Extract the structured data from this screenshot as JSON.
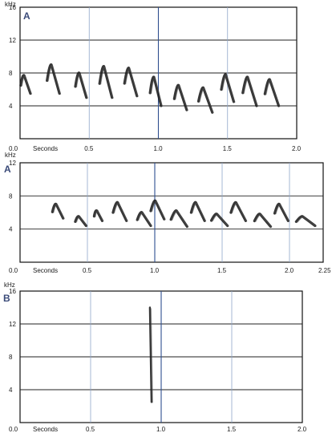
{
  "chart_data": [
    {
      "type": "spectrogram",
      "panel_label": "A",
      "ylabel": "kHz",
      "xlabel": "Seconds",
      "ylim": [
        0,
        16
      ],
      "xlim": [
        0,
        2.0
      ],
      "y_ticks": [
        "4",
        "8",
        "12",
        "16"
      ],
      "x_ticks": [
        "0.0",
        "0.5",
        "1.0",
        "1.5",
        "2.0"
      ],
      "notes": [
        {
          "t": 0.04,
          "f_low": 5.5,
          "f_high": 7.7,
          "w": 0.07
        },
        {
          "t": 0.24,
          "f_low": 5.5,
          "f_high": 9.0,
          "w": 0.09
        },
        {
          "t": 0.44,
          "f_low": 5.0,
          "f_high": 8.0,
          "w": 0.08
        },
        {
          "t": 0.62,
          "f_low": 5.0,
          "f_high": 8.8,
          "w": 0.09
        },
        {
          "t": 0.8,
          "f_low": 5.2,
          "f_high": 8.6,
          "w": 0.09
        },
        {
          "t": 0.98,
          "f_low": 4.0,
          "f_high": 7.5,
          "w": 0.08
        },
        {
          "t": 1.16,
          "f_low": 3.5,
          "f_high": 6.5,
          "w": 0.09
        },
        {
          "t": 1.34,
          "f_low": 3.2,
          "f_high": 6.2,
          "w": 0.1
        },
        {
          "t": 1.5,
          "f_low": 4.5,
          "f_high": 7.8,
          "w": 0.09
        },
        {
          "t": 1.66,
          "f_low": 4.0,
          "f_high": 7.5,
          "w": 0.1
        },
        {
          "t": 1.82,
          "f_low": 4.0,
          "f_high": 7.2,
          "w": 0.1
        }
      ]
    },
    {
      "type": "spectrogram",
      "panel_label": "A",
      "ylabel": "kHz",
      "xlabel": "Seconds",
      "ylim": [
        0,
        12
      ],
      "xlim": [
        0,
        2.25
      ],
      "y_ticks": [
        "4",
        "8",
        "12"
      ],
      "x_ticks": [
        "0.0",
        "0.5",
        "1.0",
        "1.5",
        "2.0",
        "2.25"
      ],
      "notes": [
        {
          "t": 0.28,
          "f_low": 5.3,
          "f_high": 7.0,
          "w": 0.08
        },
        {
          "t": 0.45,
          "f_low": 4.4,
          "f_high": 5.5,
          "w": 0.08
        },
        {
          "t": 0.58,
          "f_low": 5.0,
          "f_high": 6.2,
          "w": 0.06
        },
        {
          "t": 0.74,
          "f_low": 5.0,
          "f_high": 7.2,
          "w": 0.1
        },
        {
          "t": 0.92,
          "f_low": 4.4,
          "f_high": 6.0,
          "w": 0.1
        },
        {
          "t": 1.02,
          "f_low": 5.2,
          "f_high": 7.4,
          "w": 0.1
        },
        {
          "t": 1.18,
          "f_low": 4.3,
          "f_high": 6.2,
          "w": 0.12
        },
        {
          "t": 1.32,
          "f_low": 5.0,
          "f_high": 7.2,
          "w": 0.1
        },
        {
          "t": 1.48,
          "f_low": 4.4,
          "f_high": 5.8,
          "w": 0.12
        },
        {
          "t": 1.62,
          "f_low": 5.0,
          "f_high": 7.2,
          "w": 0.11
        },
        {
          "t": 1.8,
          "f_low": 4.3,
          "f_high": 5.8,
          "w": 0.12
        },
        {
          "t": 1.94,
          "f_low": 5.0,
          "f_high": 7.0,
          "w": 0.1
        },
        {
          "t": 2.12,
          "f_low": 4.4,
          "f_high": 5.5,
          "w": 0.14
        }
      ]
    },
    {
      "type": "spectrogram",
      "panel_label": "B",
      "ylabel": "kHz",
      "xlabel": "Seconds",
      "ylim": [
        0,
        16
      ],
      "xlim": [
        0,
        2.0
      ],
      "y_ticks": [
        "4",
        "8",
        "12",
        "16"
      ],
      "x_ticks": [
        "0.0",
        "0.5",
        "1.0",
        "1.5",
        "2.0"
      ],
      "notes": [
        {
          "t": 0.92,
          "f_low": 2.5,
          "f_high": 14.0,
          "w": 0.02
        }
      ]
    }
  ]
}
